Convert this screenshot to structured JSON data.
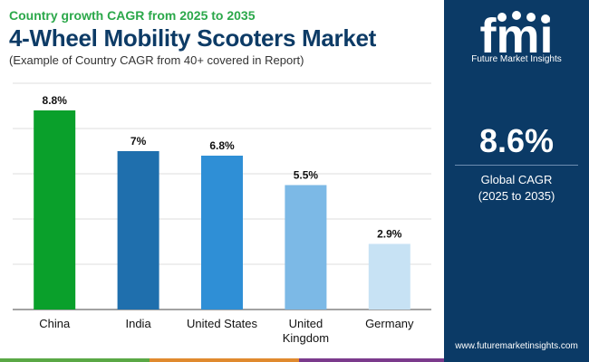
{
  "header": {
    "subtitle": "Country growth CAGR from 2025 to 2035",
    "title": "4-Wheel Mobility Scooters Market",
    "note": "(Example of Country CAGR from 40+ covered in Report)"
  },
  "sidebar": {
    "logo_text": "fmi",
    "logo_caption": "Future Market Insights",
    "value": "8.6%",
    "label_line1": "Global CAGR",
    "label_line2": "(2025 to 2035)",
    "website": "www.futuremarketinsights.com"
  },
  "colors": {
    "title": "#0d3b66",
    "subtitle": "#2ba84a",
    "sidebar_bg": "#0b3a66",
    "grid": "#dddddd",
    "stripe": [
      "#5aa845",
      "#e08a2e",
      "#7b3a8c"
    ]
  },
  "chart_data": {
    "type": "bar",
    "categories": [
      "China",
      "India",
      "United States",
      "United Kingdom",
      "Germany"
    ],
    "category_lines": [
      [
        "China"
      ],
      [
        "India"
      ],
      [
        "United States"
      ],
      [
        "United",
        "Kingdom"
      ],
      [
        "Germany"
      ]
    ],
    "values": [
      8.8,
      7.0,
      6.8,
      5.5,
      2.9
    ],
    "value_labels": [
      "8.8%",
      "7%",
      "6.8%",
      "5.5%",
      "2.9%"
    ],
    "bar_colors": [
      "#0aa02b",
      "#1f6fad",
      "#2f8fd6",
      "#7cb9e6",
      "#c7e2f4"
    ],
    "ylim": [
      0,
      10
    ],
    "grid": true,
    "xlabel": "",
    "ylabel": ""
  }
}
